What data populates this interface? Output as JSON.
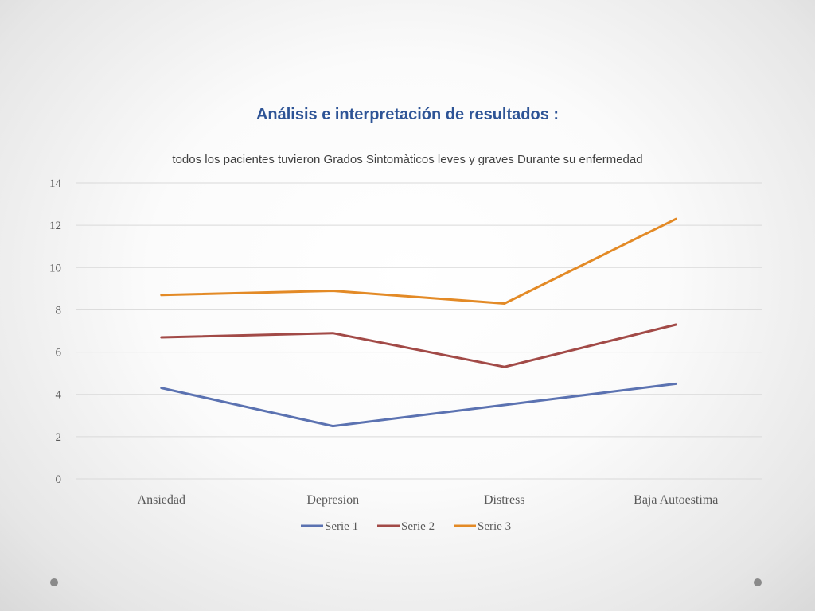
{
  "slide": {
    "title": "Análisis e interpretación de resultados :",
    "subtitle": "todos los pacientes tuvieron Grados Sintomàticos leves y  graves Durante su enfermedad"
  },
  "chart_data": {
    "type": "line",
    "categories": [
      "Ansiedad",
      "Depresion",
      "Distress",
      "Baja Autoestima"
    ],
    "series": [
      {
        "name": "Serie 1",
        "values": [
          4.3,
          2.5,
          3.5,
          4.5
        ],
        "color": "#5b72b1"
      },
      {
        "name": "Serie 2",
        "values": [
          6.7,
          6.9,
          5.3,
          7.3
        ],
        "color": "#a24a47"
      },
      {
        "name": "Serie 3",
        "values": [
          8.7,
          8.9,
          8.3,
          12.3
        ],
        "color": "#e38a26"
      }
    ],
    "yticks": [
      "0",
      "2",
      "4",
      "6",
      "8",
      "10",
      "12",
      "14"
    ],
    "ylim": [
      0,
      14
    ],
    "grid": true,
    "legend": "bottom"
  }
}
